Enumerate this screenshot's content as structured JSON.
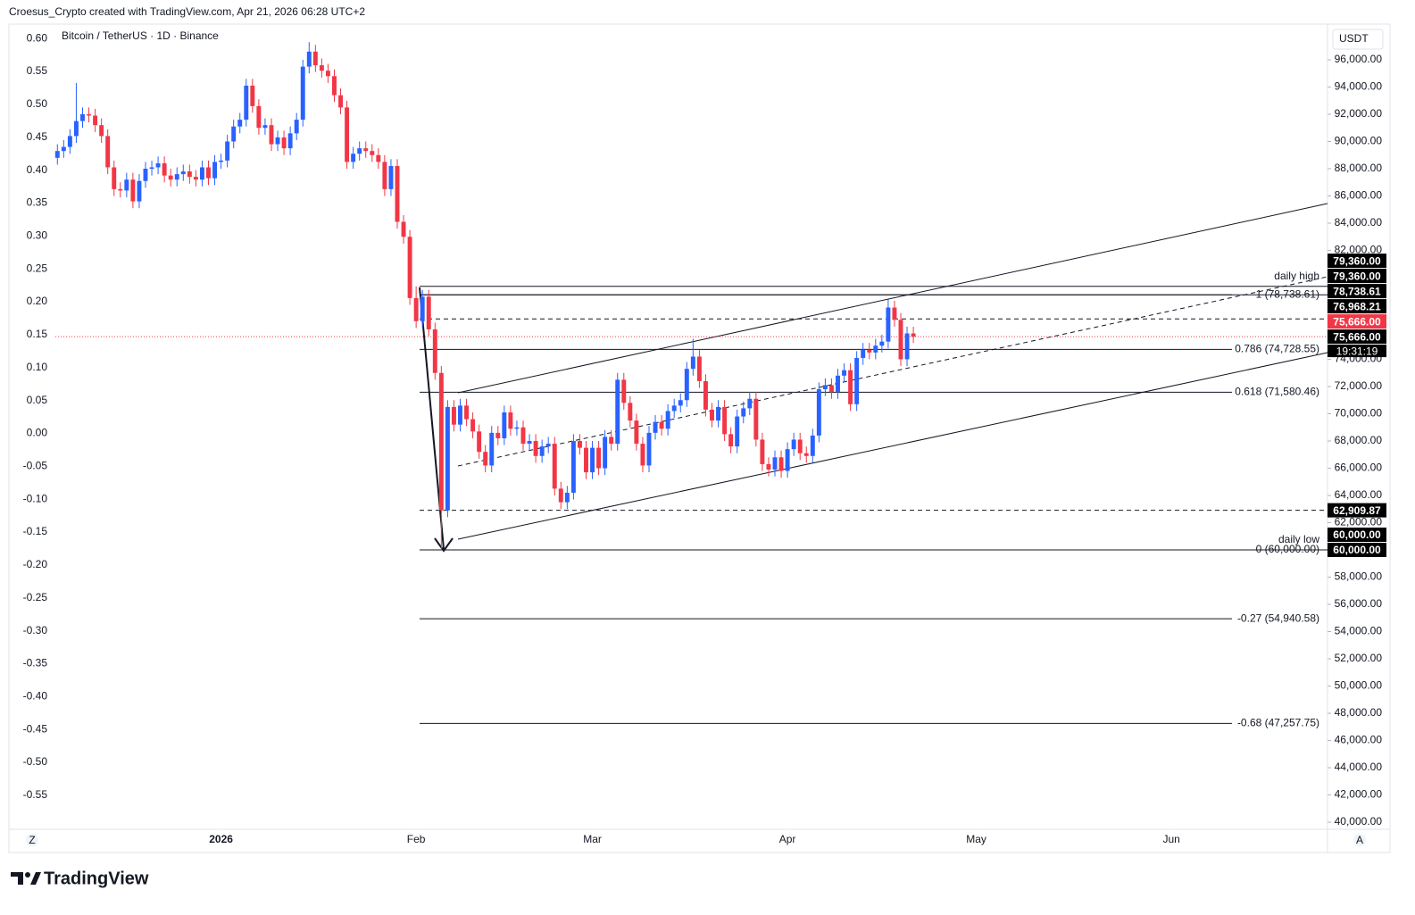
{
  "header": "Croesus_Crypto created with TradingView.com, Apr 21, 2026 06:28 UTC+2",
  "logo": "TradingView",
  "buttons": [
    "Z",
    "A"
  ],
  "chart_data": {
    "type": "candlestick",
    "title": "Bitcoin / TetherUS · 1D · Binance",
    "currency": "USDT",
    "up_color": "#2962ff",
    "down_color": "#f23645",
    "open": [
      88800,
      89300,
      89600,
      90400,
      91500,
      92000,
      91900,
      91200,
      90400,
      88100,
      86500,
      86400,
      87200,
      85600,
      87100,
      88000,
      88100,
      88400,
      87500,
      87200,
      87600,
      87800,
      87400,
      87200,
      88100,
      87300,
      88500,
      88600,
      90000,
      91100,
      91600,
      94100,
      92600,
      91000,
      91200,
      89800,
      90300,
      89500,
      90600,
      91600,
      95500,
      96600,
      95600,
      95200,
      94800,
      93400,
      92500,
      88500,
      89100,
      89500,
      89300,
      89000,
      88500,
      86500,
      88200,
      84100,
      83000,
      78500,
      76800,
      78600,
      76200,
      73000,
      62900,
      70500,
      69200,
      70600,
      69600,
      68700,
      67200,
      66200,
      68600,
      68200,
      70100,
      68900,
      69000,
      67800,
      68000,
      66900,
      67600,
      67800,
      64500,
      63500,
      64200,
      68000,
      67500,
      65700,
      67500,
      66000,
      68300,
      67800,
      72500,
      70800,
      69500,
      67800,
      66200,
      68600,
      69400,
      68900,
      70200,
      70600,
      71000,
      73300,
      74200,
      72400,
      70300,
      69500,
      70500,
      68500,
      67600,
      69800,
      70400,
      71100,
      68100,
      66300,
      65900,
      66800,
      65800,
      67400,
      68100,
      67100,
      66900,
      68400,
      71800,
      72100,
      71600,
      72800,
      73200,
      70700,
      74100,
      74700,
      74500,
      75000,
      75300,
      77800,
      76900,
      74000,
      75900
    ],
    "high": [
      89800,
      90100,
      90900,
      94300,
      92500,
      92500,
      92400,
      91700,
      90900,
      88600,
      87000,
      87700,
      87700,
      87600,
      88500,
      88600,
      88900,
      88900,
      88000,
      88100,
      88300,
      88300,
      87900,
      88600,
      88600,
      89000,
      89100,
      90500,
      91600,
      92100,
      94600,
      94600,
      93100,
      91700,
      91700,
      90800,
      90800,
      91100,
      92100,
      96000,
      97300,
      97100,
      96100,
      95700,
      95300,
      93900,
      93000,
      89600,
      90000,
      90000,
      89800,
      89500,
      89000,
      88700,
      88700,
      84600,
      83500,
      79360,
      79100,
      79100,
      76700,
      73500,
      71000,
      71000,
      71100,
      71100,
      70100,
      69200,
      67700,
      69100,
      69100,
      70600,
      70600,
      69500,
      69500,
      68500,
      68500,
      68100,
      68300,
      68300,
      65000,
      64700,
      68500,
      68500,
      68000,
      68000,
      68000,
      68800,
      68800,
      73000,
      73000,
      71300,
      70000,
      68300,
      69100,
      69900,
      69900,
      70700,
      71100,
      71500,
      73800,
      75500,
      74700,
      72900,
      70800,
      71000,
      71000,
      69000,
      70300,
      70900,
      71600,
      71600,
      68600,
      66800,
      67300,
      67300,
      67900,
      68600,
      68600,
      67600,
      68900,
      72300,
      72600,
      72600,
      73300,
      73700,
      73700,
      74600,
      75200,
      75200,
      75500,
      75800,
      78400,
      78300,
      77400,
      76400,
      76400
    ],
    "low": [
      88300,
      88800,
      89100,
      89900,
      91000,
      91400,
      90700,
      89900,
      87600,
      86000,
      85900,
      85900,
      85100,
      85100,
      86600,
      87500,
      87600,
      87000,
      86700,
      86700,
      87100,
      86900,
      86700,
      86700,
      86800,
      86800,
      88000,
      88100,
      89500,
      90600,
      91100,
      92100,
      90500,
      90500,
      89300,
      89300,
      89000,
      89000,
      90100,
      91100,
      95000,
      95100,
      94700,
      94300,
      92900,
      92000,
      88000,
      88000,
      88600,
      88800,
      88500,
      88000,
      86000,
      86000,
      83600,
      82500,
      78000,
      76300,
      76300,
      75700,
      72500,
      60000,
      62400,
      68700,
      68700,
      69100,
      68200,
      66700,
      65700,
      65700,
      67700,
      67700,
      68400,
      68400,
      67300,
      67300,
      66400,
      66400,
      67100,
      64000,
      63000,
      63000,
      63700,
      67000,
      65200,
      65200,
      65500,
      65500,
      67300,
      67300,
      70300,
      69000,
      67300,
      65700,
      65700,
      68100,
      68400,
      68400,
      69700,
      70100,
      70500,
      72800,
      71900,
      69800,
      69000,
      69000,
      68000,
      67100,
      67100,
      69300,
      69900,
      67600,
      65800,
      65400,
      65400,
      65300,
      65300,
      66900,
      66600,
      66400,
      66400,
      67900,
      71300,
      71100,
      71100,
      72300,
      70200,
      70200,
      73600,
      74000,
      74000,
      74500,
      74800,
      76400,
      73500,
      73500,
      75200
    ],
    "close": [
      89300,
      89600,
      90400,
      91500,
      92000,
      91900,
      91200,
      90400,
      88100,
      86500,
      86400,
      87200,
      85600,
      87100,
      88000,
      88100,
      88400,
      87500,
      87200,
      87600,
      87800,
      87400,
      87200,
      88100,
      87300,
      88500,
      88600,
      90000,
      91100,
      91600,
      94100,
      92600,
      91000,
      91200,
      89800,
      90300,
      89500,
      90600,
      91600,
      95500,
      96600,
      95600,
      95200,
      94800,
      93400,
      92500,
      88500,
      89100,
      89500,
      89300,
      89000,
      88500,
      86500,
      88200,
      84100,
      83000,
      78500,
      76800,
      78600,
      76200,
      73000,
      62900,
      70500,
      69200,
      70600,
      69600,
      68700,
      67200,
      66200,
      68600,
      68200,
      70100,
      68900,
      69000,
      67800,
      68000,
      66900,
      67600,
      67800,
      64500,
      63500,
      64200,
      68000,
      67500,
      65700,
      67500,
      66000,
      68300,
      67800,
      72500,
      70800,
      69500,
      67800,
      66200,
      68600,
      69400,
      68900,
      70200,
      70600,
      71000,
      73300,
      74200,
      72400,
      70300,
      69500,
      70500,
      68500,
      67600,
      69800,
      70400,
      71100,
      68100,
      66300,
      65900,
      66800,
      65800,
      67400,
      68100,
      67100,
      66900,
      68400,
      71800,
      72100,
      71600,
      72800,
      73200,
      70700,
      74100,
      74700,
      74500,
      75000,
      75300,
      77800,
      76900,
      74000,
      75900,
      75666
    ],
    "xlim": [
      -7.7,
      201.8
    ],
    "xticks": [
      {
        "value": 26,
        "label": "2026"
      },
      {
        "value": 57,
        "label": "Feb"
      },
      {
        "value": 85,
        "label": "Mar"
      },
      {
        "value": 116,
        "label": "Apr"
      },
      {
        "value": 146,
        "label": "May"
      },
      {
        "value": 177,
        "label": "Jun"
      }
    ],
    "ylim": [
      37770,
      98623
    ],
    "yticks": [
      {
        "value": 96000,
        "label": "96,000.00"
      },
      {
        "value": 94000,
        "label": "94,000.00"
      },
      {
        "value": 92000,
        "label": "92,000.00"
      },
      {
        "value": 90000,
        "label": "90,000.00"
      },
      {
        "value": 88000,
        "label": "88,000.00"
      },
      {
        "value": 86000,
        "label": "86,000.00"
      },
      {
        "value": 84000,
        "label": "84,000.00"
      },
      {
        "value": 82000,
        "label": "82,000.00"
      },
      {
        "value": 74000,
        "label": "74,000.00"
      },
      {
        "value": 72000,
        "label": "72,000.00"
      },
      {
        "value": 70000,
        "label": "70,000.00"
      },
      {
        "value": 68000,
        "label": "68,000.00"
      },
      {
        "value": 66000,
        "label": "66,000.00"
      },
      {
        "value": 64000,
        "label": "64,000.00"
      },
      {
        "value": 62000,
        "label": "62,000.00"
      },
      {
        "value": 58000,
        "label": "58,000.00"
      },
      {
        "value": 56000,
        "label": "56,000.00"
      },
      {
        "value": 54000,
        "label": "54,000.00"
      },
      {
        "value": 52000,
        "label": "52,000.00"
      },
      {
        "value": 50000,
        "label": "50,000.00"
      },
      {
        "value": 48000,
        "label": "48,000.00"
      },
      {
        "value": 46000,
        "label": "46,000.00"
      },
      {
        "value": 44000,
        "label": "44,000.00"
      },
      {
        "value": 42000,
        "label": "42,000.00"
      },
      {
        "value": 40000,
        "label": "40,000.00"
      }
    ],
    "y2lim": [
      -0.637,
      0.622
    ],
    "y2ticks": [
      {
        "value": 0.6,
        "label": "0.60"
      },
      {
        "value": 0.55,
        "label": "0.55"
      },
      {
        "value": 0.5,
        "label": "0.50"
      },
      {
        "value": 0.45,
        "label": "0.45"
      },
      {
        "value": 0.4,
        "label": "0.40"
      },
      {
        "value": 0.35,
        "label": "0.35"
      },
      {
        "value": 0.3,
        "label": "0.30"
      },
      {
        "value": 0.25,
        "label": "0.25"
      },
      {
        "value": 0.2,
        "label": "0.20"
      },
      {
        "value": 0.15,
        "label": "0.15"
      },
      {
        "value": 0.1,
        "label": "0.10"
      },
      {
        "value": 0.05,
        "label": "0.05"
      },
      {
        "value": 0,
        "label": "0.00"
      },
      {
        "value": -0.05,
        "label": "-0.05"
      },
      {
        "value": -0.1,
        "label": "-0.10"
      },
      {
        "value": -0.15,
        "label": "-0.15"
      },
      {
        "value": -0.2,
        "label": "-0.20"
      },
      {
        "value": -0.25,
        "label": "-0.25"
      },
      {
        "value": -0.3,
        "label": "-0.30"
      },
      {
        "value": -0.35,
        "label": "-0.35"
      },
      {
        "value": -0.4,
        "label": "-0.40"
      },
      {
        "value": -0.45,
        "label": "-0.45"
      },
      {
        "value": -0.5,
        "label": "-0.50"
      },
      {
        "value": -0.55,
        "label": "-0.55"
      }
    ],
    "fib_levels": [
      {
        "value": 78738.61,
        "label": "1 (78,738.61)"
      },
      {
        "value": 74728.55,
        "label": "0.786 (74,728.55)"
      },
      {
        "value": 71580.46,
        "label": "0.618 (71,580.46)"
      },
      {
        "value": 60000,
        "label": "0 (60,000.00)"
      },
      {
        "value": 54940.58,
        "label": "-0.27 (54,940.58)"
      },
      {
        "value": 47257.75,
        "label": "-0.68 (47,257.75)"
      }
    ],
    "annotations": [
      {
        "value": 79360,
        "label": "daily high"
      },
      {
        "value": 60000,
        "label": "daily low"
      }
    ],
    "price_labels": [
      {
        "value": 79360,
        "label": "79,360.00",
        "color": "#000000",
        "line": "solid"
      },
      {
        "value": 79360,
        "label": "79,360.00",
        "color": "#000000",
        "line": "none"
      },
      {
        "value": 78738.61,
        "label": "78,738.61",
        "color": "#000000",
        "line": "solid"
      },
      {
        "value": 76968.21,
        "label": "76,968.21",
        "color": "#000000",
        "line": "dashed"
      },
      {
        "value": 75666,
        "label": "75,666.00",
        "color": "#f23645",
        "line": "dotted"
      },
      {
        "value": 75666,
        "label": "75,666.00",
        "color": "#000000",
        "line": "none"
      },
      {
        "value": 62909.87,
        "label": "62,909.87",
        "color": "#000000",
        "line": "dashed"
      },
      {
        "value": 60000,
        "label": "60,000.00",
        "color": "#000000",
        "line": "solid"
      },
      {
        "value": 60000,
        "label": "60,000.00",
        "color": "#000000",
        "line": "none"
      }
    ],
    "countdown": "19:31:19"
  }
}
